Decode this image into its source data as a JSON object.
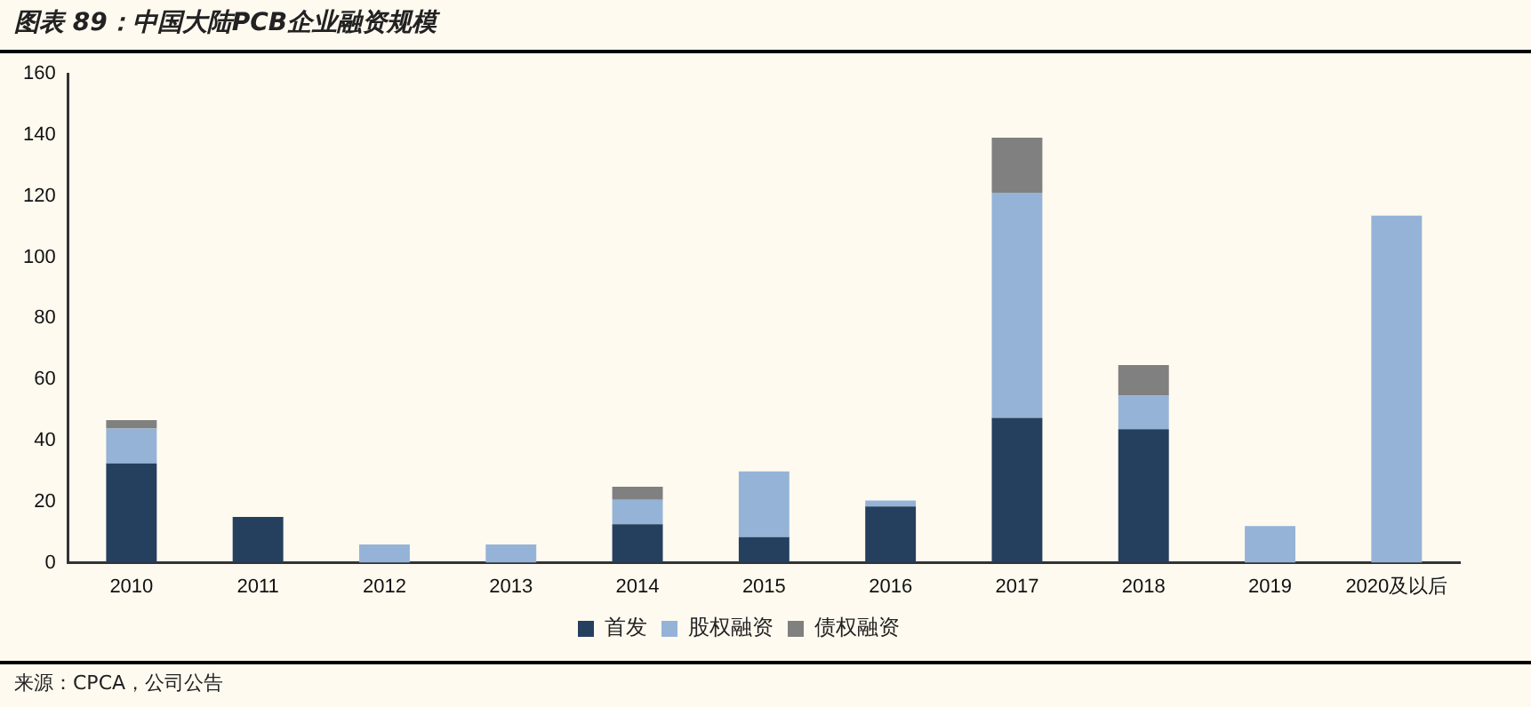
{
  "chart_data": {
    "type": "bar",
    "title": "图表 89：中国大陆PCB企业融资规模",
    "categories": [
      "2010",
      "2011",
      "2012",
      "2013",
      "2014",
      "2015",
      "2016",
      "2017",
      "2018",
      "2019",
      "2020及以后"
    ],
    "stacked": true,
    "series": [
      {
        "name": "首发",
        "color": "#253f5f",
        "values": [
          32.5,
          15,
          null,
          null,
          12.6,
          8.4,
          18.4,
          47.4,
          43.7,
          null,
          null
        ]
      },
      {
        "name": "股权融资",
        "color": "#95b3d7",
        "values": [
          11.4,
          null,
          6,
          6,
          8,
          21.5,
          2,
          73.7,
          11,
          12,
          113.6
        ]
      },
      {
        "name": "债权融资",
        "color": "#808080",
        "values": [
          2.8,
          null,
          null,
          null,
          4.3,
          null,
          null,
          18,
          10,
          null,
          null
        ]
      }
    ],
    "ylim": [
      0,
      160
    ],
    "yticks": [
      0,
      20,
      40,
      60,
      80,
      100,
      120,
      140,
      160
    ],
    "grid": false,
    "legend": "bottom",
    "annotations": [
      "来源：CPCA，公司公告"
    ]
  }
}
